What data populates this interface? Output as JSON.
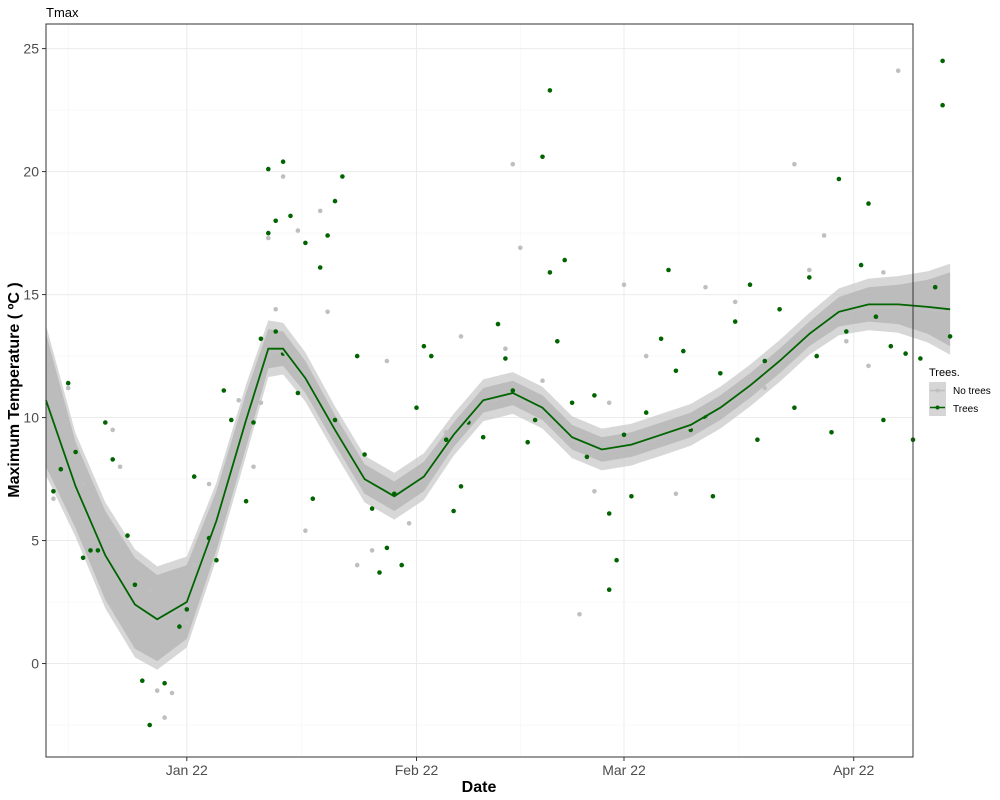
{
  "chart_data": {
    "type": "scatter",
    "title": "Tmax",
    "xlabel": "Date",
    "ylabel": "Maximum Temperature ( ºC )",
    "x_ticks": [
      "Jan 22",
      "Feb 22",
      "Mar 22",
      "Apr 22"
    ],
    "y_ticks": [
      "0",
      "5",
      "10",
      "15",
      "20",
      "25"
    ],
    "xlim": [
      "2021-12-13",
      "2022-04-09"
    ],
    "ylim": [
      -3.8,
      26
    ],
    "grid": true,
    "legend": {
      "title": "Trees.",
      "position": "right",
      "entries": [
        "No trees",
        "Trees"
      ]
    },
    "colors": {
      "No trees": "#bfbfbf",
      "Trees": "#006400",
      "ribbon": "#a6a6a6"
    },
    "series": [
      {
        "name": "No trees",
        "points": [
          [
            "2021-12-14",
            6.7
          ],
          [
            "2021-12-16",
            11.2
          ],
          [
            "2021-12-18",
            7.3
          ],
          [
            "2021-12-22",
            9.5
          ],
          [
            "2021-12-23",
            8.0
          ],
          [
            "2021-12-27",
            3.0
          ],
          [
            "2021-12-28",
            -1.1
          ],
          [
            "2021-12-29",
            -2.2
          ],
          [
            "2021-12-30",
            -1.2
          ],
          [
            "2022-01-01",
            1.7
          ],
          [
            "2022-01-02",
            4.0
          ],
          [
            "2022-01-04",
            7.3
          ],
          [
            "2022-01-08",
            10.7
          ],
          [
            "2022-01-10",
            8.0
          ],
          [
            "2022-01-11",
            10.6
          ],
          [
            "2022-01-12",
            17.3
          ],
          [
            "2022-01-13",
            14.4
          ],
          [
            "2022-01-14",
            19.8
          ],
          [
            "2022-01-16",
            17.6
          ],
          [
            "2022-01-17",
            5.4
          ],
          [
            "2022-01-19",
            18.4
          ],
          [
            "2022-01-20",
            14.3
          ],
          [
            "2022-01-24",
            4.0
          ],
          [
            "2022-01-26",
            4.6
          ],
          [
            "2022-01-28",
            12.3
          ],
          [
            "2022-01-31",
            5.7
          ],
          [
            "2022-02-05",
            9.4
          ],
          [
            "2022-02-07",
            13.3
          ],
          [
            "2022-02-13",
            12.8
          ],
          [
            "2022-02-14",
            20.3
          ],
          [
            "2022-02-15",
            16.9
          ],
          [
            "2022-02-18",
            11.5
          ],
          [
            "2022-02-23",
            2.0
          ],
          [
            "2022-02-25",
            7.0
          ],
          [
            "2022-02-27",
            10.6
          ],
          [
            "2022-03-01",
            15.4
          ],
          [
            "2022-03-04",
            12.5
          ],
          [
            "2022-03-08",
            6.9
          ],
          [
            "2022-03-12",
            15.3
          ],
          [
            "2022-03-16",
            14.7
          ],
          [
            "2022-03-20",
            11.2
          ],
          [
            "2022-03-24",
            20.3
          ],
          [
            "2022-03-26",
            16.0
          ],
          [
            "2022-03-28",
            17.4
          ],
          [
            "2022-03-31",
            13.1
          ],
          [
            "2022-04-03",
            12.1
          ],
          [
            "2022-04-05",
            15.9
          ],
          [
            "2022-04-07",
            24.1
          ]
        ]
      },
      {
        "name": "Trees",
        "points": [
          [
            "2021-12-14",
            7.0
          ],
          [
            "2021-12-15",
            7.9
          ],
          [
            "2021-12-16",
            11.4
          ],
          [
            "2021-12-17",
            8.6
          ],
          [
            "2021-12-18",
            4.3
          ],
          [
            "2021-12-19",
            4.6
          ],
          [
            "2021-12-20",
            4.6
          ],
          [
            "2021-12-21",
            9.8
          ],
          [
            "2021-12-22",
            8.3
          ],
          [
            "2021-12-24",
            5.2
          ],
          [
            "2021-12-25",
            3.2
          ],
          [
            "2021-12-26",
            -0.7
          ],
          [
            "2021-12-27",
            -2.5
          ],
          [
            "2021-12-29",
            -0.8
          ],
          [
            "2021-12-31",
            1.5
          ],
          [
            "2022-01-01",
            2.2
          ],
          [
            "2022-01-02",
            7.6
          ],
          [
            "2022-01-04",
            5.1
          ],
          [
            "2022-01-05",
            4.2
          ],
          [
            "2022-01-06",
            11.1
          ],
          [
            "2022-01-07",
            9.9
          ],
          [
            "2022-01-09",
            6.6
          ],
          [
            "2022-01-10",
            9.8
          ],
          [
            "2022-01-11",
            13.2
          ],
          [
            "2022-01-12",
            17.5
          ],
          [
            "2022-01-12",
            20.1
          ],
          [
            "2022-01-13",
            18.0
          ],
          [
            "2022-01-13",
            13.5
          ],
          [
            "2022-01-14",
            20.4
          ],
          [
            "2022-01-14",
            12.6
          ],
          [
            "2022-01-15",
            18.2
          ],
          [
            "2022-01-16",
            11.0
          ],
          [
            "2022-01-17",
            17.1
          ],
          [
            "2022-01-18",
            6.7
          ],
          [
            "2022-01-19",
            16.1
          ],
          [
            "2022-01-20",
            17.4
          ],
          [
            "2022-01-21",
            18.8
          ],
          [
            "2022-01-21",
            9.9
          ],
          [
            "2022-01-22",
            19.8
          ],
          [
            "2022-01-24",
            12.5
          ],
          [
            "2022-01-25",
            8.5
          ],
          [
            "2022-01-26",
            6.3
          ],
          [
            "2022-01-27",
            3.7
          ],
          [
            "2022-01-28",
            4.7
          ],
          [
            "2022-01-29",
            6.9
          ],
          [
            "2022-01-30",
            4.0
          ],
          [
            "2022-02-01",
            10.4
          ],
          [
            "2022-02-02",
            12.9
          ],
          [
            "2022-02-03",
            12.5
          ],
          [
            "2022-02-05",
            9.1
          ],
          [
            "2022-02-06",
            6.2
          ],
          [
            "2022-02-07",
            7.2
          ],
          [
            "2022-02-08",
            9.8
          ],
          [
            "2022-02-10",
            9.2
          ],
          [
            "2022-02-12",
            13.8
          ],
          [
            "2022-02-13",
            12.4
          ],
          [
            "2022-02-14",
            11.1
          ],
          [
            "2022-02-16",
            9.0
          ],
          [
            "2022-02-17",
            9.9
          ],
          [
            "2022-02-18",
            20.6
          ],
          [
            "2022-02-19",
            23.3
          ],
          [
            "2022-02-19",
            15.9
          ],
          [
            "2022-02-20",
            13.1
          ],
          [
            "2022-02-21",
            16.4
          ],
          [
            "2022-02-22",
            10.6
          ],
          [
            "2022-02-24",
            8.4
          ],
          [
            "2022-02-25",
            10.9
          ],
          [
            "2022-02-27",
            6.1
          ],
          [
            "2022-02-27",
            3.0
          ],
          [
            "2022-02-28",
            4.2
          ],
          [
            "2022-03-01",
            9.3
          ],
          [
            "2022-03-02",
            6.8
          ],
          [
            "2022-03-04",
            10.2
          ],
          [
            "2022-03-06",
            13.2
          ],
          [
            "2022-03-07",
            16.0
          ],
          [
            "2022-03-08",
            11.9
          ],
          [
            "2022-03-09",
            12.7
          ],
          [
            "2022-03-10",
            9.5
          ],
          [
            "2022-03-12",
            10.0
          ],
          [
            "2022-03-13",
            6.8
          ],
          [
            "2022-03-14",
            11.8
          ],
          [
            "2022-03-16",
            13.9
          ],
          [
            "2022-03-18",
            15.4
          ],
          [
            "2022-03-19",
            9.1
          ],
          [
            "2022-03-20",
            12.3
          ],
          [
            "2022-03-22",
            14.4
          ],
          [
            "2022-03-24",
            10.4
          ],
          [
            "2022-03-26",
            15.7
          ],
          [
            "2022-03-27",
            12.5
          ],
          [
            "2022-03-29",
            9.4
          ],
          [
            "2022-03-30",
            19.7
          ],
          [
            "2022-03-31",
            13.5
          ],
          [
            "2022-04-02",
            16.2
          ],
          [
            "2022-04-03",
            18.7
          ],
          [
            "2022-04-04",
            14.1
          ],
          [
            "2022-04-05",
            9.9
          ],
          [
            "2022-04-06",
            12.9
          ],
          [
            "2022-04-08",
            12.6
          ],
          [
            "2022-04-09",
            9.1
          ],
          [
            "2022-04-10",
            12.4
          ],
          [
            "2022-04-12",
            15.3
          ],
          [
            "2022-04-13",
            24.5
          ],
          [
            "2022-04-13",
            22.7
          ],
          [
            "2022-04-14",
            13.3
          ]
        ]
      }
    ],
    "smooth": {
      "name": "Trees",
      "points": [
        [
          "2021-12-13",
          10.7
        ],
        [
          "2021-12-17",
          7.2
        ],
        [
          "2021-12-21",
          4.4
        ],
        [
          "2021-12-25",
          2.4
        ],
        [
          "2021-12-28",
          1.8
        ],
        [
          "2022-01-01",
          2.5
        ],
        [
          "2022-01-05",
          5.8
        ],
        [
          "2022-01-09",
          9.9
        ],
        [
          "2022-01-12",
          12.8
        ],
        [
          "2022-01-14",
          12.8
        ],
        [
          "2022-01-17",
          11.6
        ],
        [
          "2022-01-21",
          9.5
        ],
        [
          "2022-01-25",
          7.5
        ],
        [
          "2022-01-29",
          6.8
        ],
        [
          "2022-02-02",
          7.6
        ],
        [
          "2022-02-06",
          9.3
        ],
        [
          "2022-02-10",
          10.7
        ],
        [
          "2022-02-14",
          11.0
        ],
        [
          "2022-02-18",
          10.4
        ],
        [
          "2022-02-22",
          9.2
        ],
        [
          "2022-02-26",
          8.7
        ],
        [
          "2022-03-02",
          8.9
        ],
        [
          "2022-03-06",
          9.3
        ],
        [
          "2022-03-10",
          9.7
        ],
        [
          "2022-03-14",
          10.4
        ],
        [
          "2022-03-18",
          11.3
        ],
        [
          "2022-03-22",
          12.3
        ],
        [
          "2022-03-26",
          13.4
        ],
        [
          "2022-03-30",
          14.3
        ],
        [
          "2022-04-03",
          14.6
        ],
        [
          "2022-04-07",
          14.6
        ],
        [
          "2022-04-11",
          14.5
        ],
        [
          "2022-04-14",
          14.4
        ]
      ],
      "band": [
        [
          "2021-12-13",
          8.0,
          13.4
        ],
        [
          "2021-12-17",
          5.5,
          9.0
        ],
        [
          "2021-12-21",
          2.6,
          6.2
        ],
        [
          "2021-12-25",
          0.6,
          4.3
        ],
        [
          "2021-12-28",
          0.1,
          3.6
        ],
        [
          "2022-01-01",
          1.0,
          4.0
        ],
        [
          "2022-01-05",
          4.6,
          7.0
        ],
        [
          "2022-01-09",
          8.8,
          11.0
        ],
        [
          "2022-01-12",
          12.0,
          13.6
        ],
        [
          "2022-01-14",
          12.1,
          13.5
        ],
        [
          "2022-01-17",
          11.0,
          12.3
        ],
        [
          "2022-01-21",
          8.9,
          10.1
        ],
        [
          "2022-01-25",
          6.9,
          8.1
        ],
        [
          "2022-01-29",
          6.2,
          7.4
        ],
        [
          "2022-02-02",
          7.0,
          8.2
        ],
        [
          "2022-02-06",
          8.8,
          9.8
        ],
        [
          "2022-02-10",
          10.2,
          11.2
        ],
        [
          "2022-02-14",
          10.5,
          11.5
        ],
        [
          "2022-02-18",
          9.9,
          10.9
        ],
        [
          "2022-02-22",
          8.7,
          9.7
        ],
        [
          "2022-02-26",
          8.2,
          9.2
        ],
        [
          "2022-03-02",
          8.4,
          9.4
        ],
        [
          "2022-03-06",
          8.8,
          9.8
        ],
        [
          "2022-03-10",
          9.2,
          10.2
        ],
        [
          "2022-03-14",
          9.9,
          10.9
        ],
        [
          "2022-03-18",
          10.8,
          11.8
        ],
        [
          "2022-03-22",
          11.8,
          12.8
        ],
        [
          "2022-03-26",
          12.9,
          13.9
        ],
        [
          "2022-03-30",
          13.7,
          14.9
        ],
        [
          "2022-04-03",
          13.9,
          15.3
        ],
        [
          "2022-04-07",
          13.8,
          15.4
        ],
        [
          "2022-04-11",
          13.4,
          15.6
        ],
        [
          "2022-04-14",
          12.9,
          15.9
        ]
      ]
    }
  }
}
